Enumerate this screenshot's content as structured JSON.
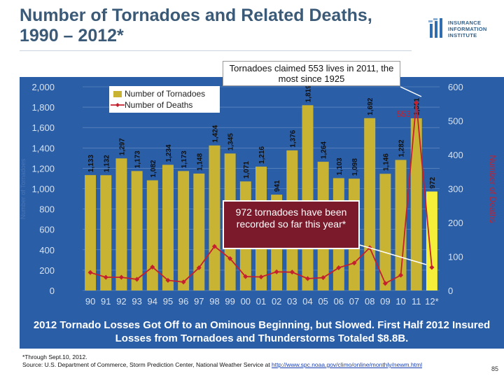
{
  "title": "Number of Tornadoes and Related Deaths, 1990 – 2012*",
  "logo": {
    "line1": "INSURANCE",
    "line2": "INFORMATION",
    "line3": "INSTITUTE"
  },
  "callout_top": "Tornadoes claimed 553 lives in 2011, the most since 1925",
  "callout_mid": "972 tornadoes have been recorded so far this year*",
  "banner": "2012 Tornado Losses Got Off to an Ominous Beginning, but Slowed. First Half 2012 Insured Losses from Tornadoes and Thunderstorms Totaled $8.8B.",
  "footnote": {
    "line1": "*Through Sept.10, 2012.",
    "line2_prefix": "Source: U.S. Department of Commerce, Storm Prediction Center, National Weather Service at ",
    "url": "http://www.spc.noaa.gov/climo/online/monthly/newm.html"
  },
  "page_number": "85",
  "colors": {
    "panel": "#2a5ea7",
    "bars": "#c9b333",
    "bar_2012": "#f5ef3a",
    "line": "#c4202e",
    "grid": "#6f93c8",
    "tick_text": "#d8e2f0",
    "callout_mid_bg": "#7a1a2b"
  },
  "chart_data": {
    "type": "bar",
    "categories": [
      "90",
      "91",
      "92",
      "93",
      "94",
      "95",
      "96",
      "97",
      "98",
      "99",
      "00",
      "01",
      "02",
      "03",
      "04",
      "05",
      "06",
      "07",
      "08",
      "09",
      "10",
      "11",
      "12*"
    ],
    "series": [
      {
        "name": "Number of Tornadoes",
        "type": "bar",
        "axis": "left",
        "values": [
          1133,
          1132,
          1297,
          1173,
          1082,
          1234,
          1173,
          1148,
          1424,
          1345,
          1071,
          1216,
          941,
          1376,
          1819,
          1264,
          1103,
          1098,
          1692,
          1146,
          1282,
          1691,
          972
        ],
        "labels": [
          "1,133",
          "1,132",
          "1,297",
          "1,173",
          "1,082",
          "1,234",
          "1,173",
          "1,148",
          "1,424",
          "1,345",
          "1,071",
          "1,216",
          "941",
          "1,376",
          "1,819",
          "1,264",
          "1,103",
          "1,098",
          "1,692",
          "1,146",
          "1,282",
          "1,691",
          "972"
        ]
      },
      {
        "name": "Number of Deaths",
        "type": "line",
        "axis": "right",
        "values": [
          53,
          39,
          39,
          33,
          69,
          30,
          25,
          67,
          130,
          94,
          41,
          40,
          55,
          54,
          35,
          38,
          67,
          81,
          126,
          21,
          45,
          553,
          68
        ]
      }
    ],
    "annotation": {
      "text": "553",
      "category": "11"
    },
    "ylim_left": [
      0,
      2000
    ],
    "yticks_left": [
      "0",
      "200",
      "400",
      "600",
      "800",
      "1,000",
      "1,200",
      "1,400",
      "1,600",
      "1,800",
      "2,000"
    ],
    "ylim_right": [
      0,
      600
    ],
    "yticks_right": [
      "0",
      "100",
      "200",
      "300",
      "400",
      "500",
      "600"
    ],
    "ylabel_left": "Number of Tornadoes",
    "ylabel_right": "Number of Deaths",
    "legend_position": "top-left"
  }
}
